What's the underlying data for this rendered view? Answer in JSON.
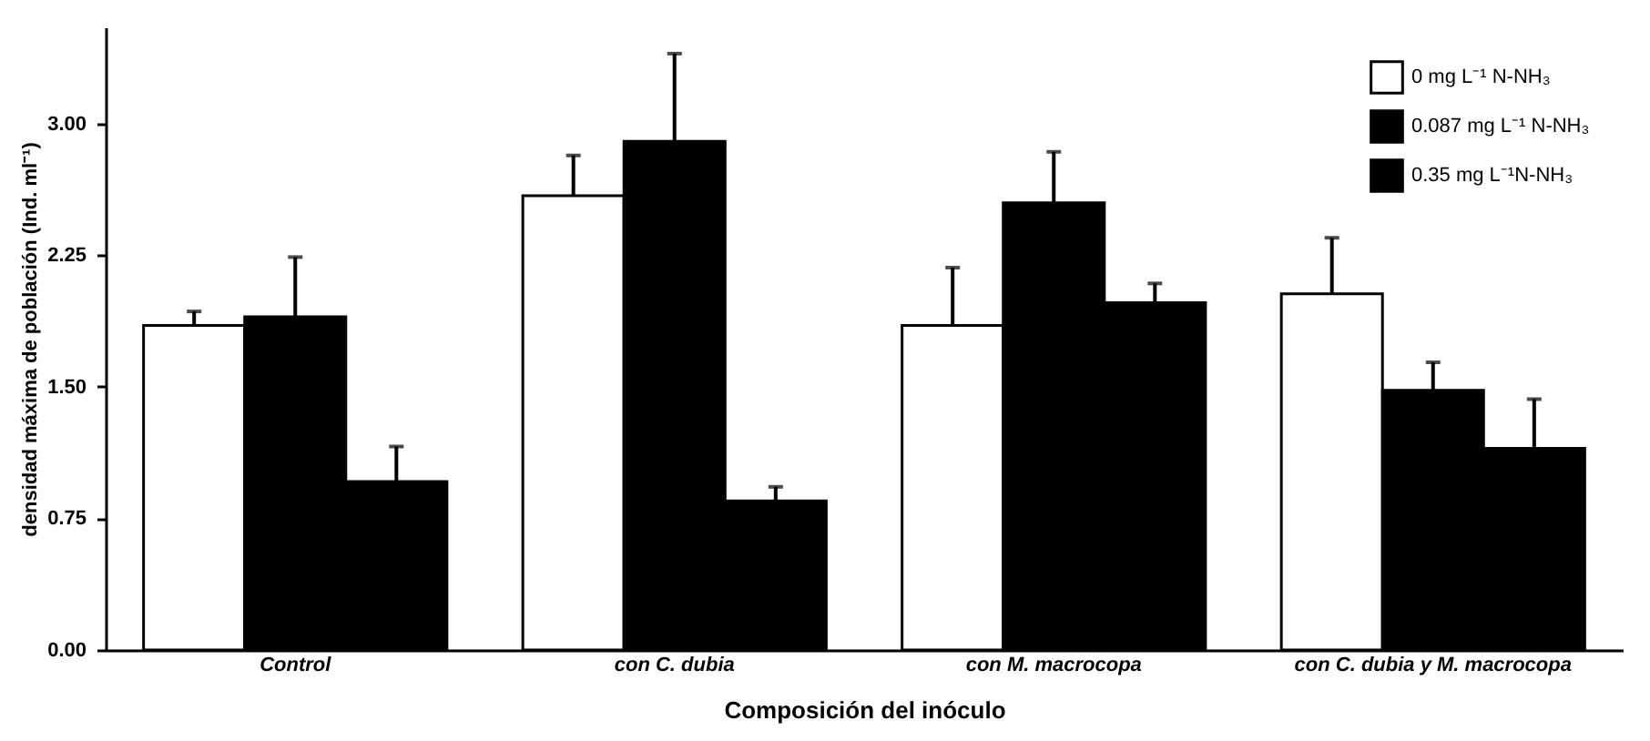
{
  "chart_data": {
    "type": "bar",
    "xlabel": "Composición del inóculo",
    "ylabel": "densidad máxima de población (Ind. ml⁻¹)",
    "categories": [
      "Control",
      "con C. dubia",
      "con M. macrocopa",
      "con C. dubia y M. macrocopa"
    ],
    "series": [
      {
        "name": "0 mg L⁻¹ N-NH₃",
        "color": "#ffffff",
        "values": [
          1.85,
          2.59,
          1.85,
          2.03
        ],
        "errors": [
          0.08,
          0.23,
          0.33,
          0.32
        ]
      },
      {
        "name": "0.087 mg L⁻¹ N-NH₃",
        "color": "#000000",
        "values": [
          1.9,
          2.9,
          2.55,
          1.48
        ],
        "errors": [
          0.34,
          0.5,
          0.29,
          0.16
        ]
      },
      {
        "name": "0.35 mg L⁻¹N-NH₃",
        "color": "#000000",
        "values": [
          0.96,
          0.85,
          1.98,
          1.15
        ],
        "errors": [
          0.2,
          0.08,
          0.11,
          0.28
        ]
      }
    ],
    "ylim": [
      0,
      3.55
    ],
    "yticks": [
      {
        "value": 0,
        "label": "0.00"
      },
      {
        "value": 0.75,
        "label": "0.75"
      },
      {
        "value": 1.5,
        "label": "1.50"
      },
      {
        "value": 2.25,
        "label": "2.25"
      },
      {
        "value": 3,
        "label": "3.00"
      }
    ],
    "grid": false,
    "legend": "top right"
  }
}
